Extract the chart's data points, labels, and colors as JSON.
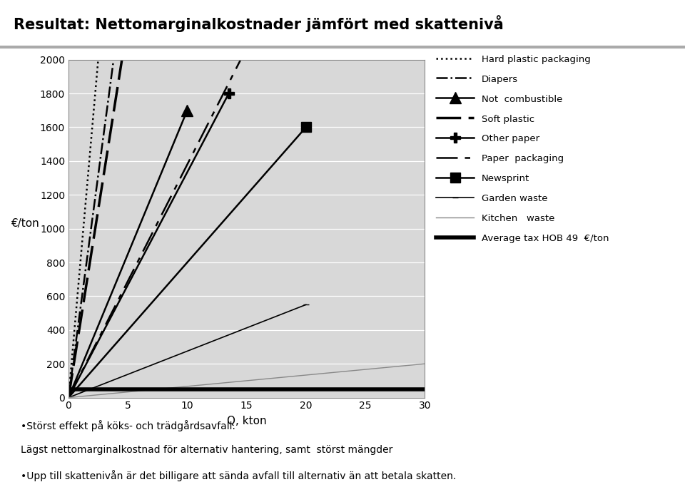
{
  "title": "Resultat: Nettomarginalkostnader jämfört med skattenivå",
  "xlabel": "Q, kton",
  "ylabel": "€/ton",
  "xlim": [
    0,
    30
  ],
  "ylim": [
    0,
    2000
  ],
  "yticks": [
    0,
    200,
    400,
    600,
    800,
    1000,
    1200,
    1400,
    1600,
    1800,
    2000
  ],
  "xticks": [
    0,
    5,
    10,
    15,
    20,
    25,
    30
  ],
  "series": [
    {
      "label": "Hard plastic packaging",
      "x": [
        0,
        2.5
      ],
      "y": [
        0,
        2000
      ],
      "color": "#000000",
      "linestyle": "dotted",
      "linewidth": 1.8,
      "marker": null,
      "markersize": 0,
      "dashes": null
    },
    {
      "label": "Diapers",
      "x": [
        0,
        3.8
      ],
      "y": [
        0,
        2000
      ],
      "color": "#000000",
      "linestyle": "dashdot",
      "linewidth": 1.8,
      "marker": null,
      "markersize": 0,
      "dashes": null
    },
    {
      "label": "Not  combustible",
      "x": [
        0,
        10
      ],
      "y": [
        0,
        1700
      ],
      "color": "#000000",
      "linestyle": "solid",
      "linewidth": 1.8,
      "marker": "^",
      "markersize": 12,
      "dashes": null
    },
    {
      "label": "Soft plastic",
      "x": [
        0,
        4.5
      ],
      "y": [
        0,
        2000
      ],
      "color": "#000000",
      "linestyle": "custom_dash",
      "linewidth": 2.5,
      "marker": null,
      "markersize": 0,
      "dashes": [
        10,
        3,
        10,
        3
      ]
    },
    {
      "label": "Other paper",
      "x": [
        0,
        13.5
      ],
      "y": [
        0,
        1800
      ],
      "color": "#000000",
      "linestyle": "solid",
      "linewidth": 1.8,
      "marker": "P",
      "markersize": 10,
      "dashes": null
    },
    {
      "label": "Paper  packaging",
      "x": [
        0,
        14.5
      ],
      "y": [
        0,
        2000
      ],
      "color": "#000000",
      "linestyle": "custom_dash",
      "linewidth": 1.8,
      "marker": null,
      "markersize": 0,
      "dashes": [
        12,
        4,
        3,
        4
      ]
    },
    {
      "label": "Newsprint",
      "x": [
        0,
        20
      ],
      "y": [
        0,
        1600
      ],
      "color": "#000000",
      "linestyle": "solid",
      "linewidth": 1.8,
      "marker": "s",
      "markersize": 10,
      "dashes": null
    },
    {
      "label": "Garden waste",
      "x": [
        0,
        20
      ],
      "y": [
        0,
        550
      ],
      "color": "#000000",
      "linestyle": "solid",
      "linewidth": 1.2,
      "marker": "_",
      "markersize": 6,
      "dashes": null
    },
    {
      "label": "Kitchen   waste",
      "x": [
        0,
        30
      ],
      "y": [
        0,
        200
      ],
      "color": "#888888",
      "linestyle": "solid",
      "linewidth": 1.0,
      "marker": null,
      "markersize": 0,
      "dashes": null
    },
    {
      "label": "Average tax HOB 49  €/ton",
      "x": [
        0,
        30
      ],
      "y": [
        49,
        49
      ],
      "color": "#000000",
      "linestyle": "solid",
      "linewidth": 4.0,
      "marker": null,
      "markersize": 0,
      "dashes": null
    }
  ],
  "subtitle1": "•Störst effekt på köks- och trädgårdsavfall.",
  "subtitle2": "Lägst nettomarginalkostnad för alternativ hantering, samt  störst mängder",
  "subtitle3": "•Upp till skattenivån är det billigare att sända avfall till alternativ än att betala skatten.",
  "background_color": "#ffffff",
  "plot_bg_color": "#d8d8d8"
}
